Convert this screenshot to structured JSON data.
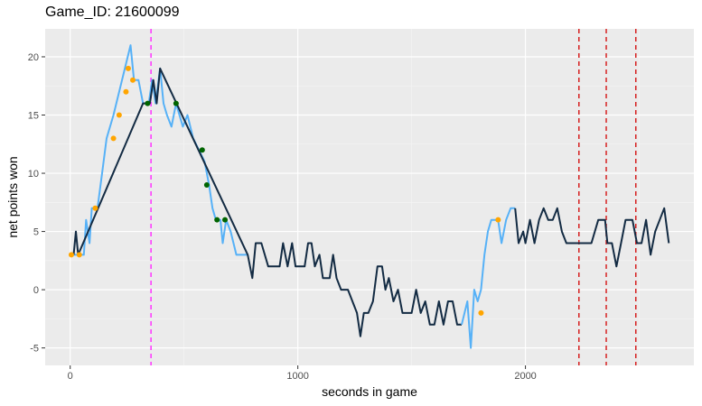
{
  "chart_data": {
    "type": "line",
    "title": "Game_ID: 21600099",
    "xlabel": "seconds in game",
    "ylabel": "net points won",
    "xlim": [
      -110,
      2740
    ],
    "ylim": [
      -6.5,
      22.4
    ],
    "x_ticks": [
      0,
      1000,
      2000
    ],
    "y_ticks": [
      -5,
      0,
      5,
      10,
      15,
      20
    ],
    "grid": true,
    "legend": "none",
    "colors": {
      "panel": "#ebebeb",
      "grid_major": "#ffffff",
      "grid_minor": "#f5f5f5",
      "series_light": "#56b1f7",
      "series_dark": "#132b43",
      "points_orange": "#ffa500",
      "points_green": "#006400",
      "vline_magenta": "#ff33ff",
      "vline_red": "#d62020"
    },
    "series": [
      {
        "color_key": "series_light",
        "points": [
          [
            0,
            3
          ],
          [
            30,
            3
          ],
          [
            60,
            3
          ],
          [
            70,
            6
          ],
          [
            85,
            4
          ],
          [
            95,
            7
          ],
          [
            120,
            7
          ],
          [
            140,
            10
          ],
          [
            160,
            13
          ],
          [
            190,
            15
          ],
          [
            215,
            17
          ],
          [
            240,
            19
          ],
          [
            265,
            21
          ],
          [
            280,
            18
          ],
          [
            300,
            18
          ],
          [
            320,
            16
          ],
          [
            345,
            16
          ],
          [
            360,
            18
          ],
          [
            375,
            16
          ],
          [
            395,
            19
          ],
          [
            410,
            16
          ],
          [
            425,
            15
          ],
          [
            445,
            14
          ],
          [
            465,
            16
          ],
          [
            480,
            15
          ],
          [
            495,
            14
          ],
          [
            515,
            15
          ],
          [
            540,
            13
          ],
          [
            565,
            12
          ],
          [
            590,
            11
          ],
          [
            610,
            9
          ],
          [
            625,
            7
          ],
          [
            640,
            6
          ],
          [
            660,
            6
          ],
          [
            670,
            4
          ],
          [
            685,
            6
          ],
          [
            705,
            5
          ],
          [
            730,
            3
          ],
          [
            780,
            3
          ]
        ]
      },
      {
        "color_key": "series_dark",
        "points": [
          [
            15,
            3
          ],
          [
            25,
            5
          ],
          [
            35,
            3
          ],
          [
            320,
            16
          ],
          [
            350,
            16
          ],
          [
            365,
            18
          ],
          [
            380,
            16
          ],
          [
            395,
            19
          ],
          [
            780,
            3
          ],
          [
            800,
            1
          ],
          [
            815,
            4
          ],
          [
            840,
            4
          ],
          [
            870,
            2
          ],
          [
            920,
            2
          ],
          [
            935,
            4
          ],
          [
            955,
            2
          ],
          [
            975,
            4
          ],
          [
            990,
            2
          ],
          [
            1030,
            2
          ],
          [
            1045,
            4
          ],
          [
            1060,
            4
          ],
          [
            1075,
            2
          ],
          [
            1095,
            3
          ],
          [
            1110,
            1
          ],
          [
            1140,
            1
          ],
          [
            1155,
            3
          ],
          [
            1170,
            1
          ],
          [
            1190,
            0
          ],
          [
            1220,
            0
          ],
          [
            1240,
            -1
          ],
          [
            1260,
            -2
          ],
          [
            1275,
            -4
          ],
          [
            1290,
            -2
          ],
          [
            1310,
            -2
          ],
          [
            1330,
            -1
          ],
          [
            1350,
            2
          ],
          [
            1370,
            2
          ],
          [
            1385,
            0
          ],
          [
            1400,
            1
          ],
          [
            1420,
            -1
          ],
          [
            1440,
            0
          ],
          [
            1460,
            -2
          ],
          [
            1500,
            -2
          ],
          [
            1520,
            0
          ],
          [
            1540,
            -2
          ],
          [
            1560,
            -1
          ],
          [
            1580,
            -3
          ],
          [
            1600,
            -3
          ],
          [
            1620,
            -1
          ],
          [
            1640,
            -3
          ],
          [
            1660,
            -1
          ],
          [
            1680,
            -1
          ],
          [
            1700,
            -3
          ],
          [
            1720,
            -3
          ]
        ]
      },
      {
        "color_key": "series_light",
        "points": [
          [
            1720,
            -3
          ],
          [
            1745,
            -1
          ],
          [
            1760,
            -5
          ],
          [
            1775,
            0
          ],
          [
            1790,
            -1
          ],
          [
            1805,
            0
          ],
          [
            1820,
            3
          ],
          [
            1835,
            5
          ],
          [
            1850,
            6
          ],
          [
            1880,
            6
          ],
          [
            1895,
            4
          ],
          [
            1915,
            6
          ],
          [
            1935,
            7
          ],
          [
            1955,
            7
          ]
        ]
      },
      {
        "color_key": "series_dark",
        "points": [
          [
            1955,
            7
          ],
          [
            1970,
            4
          ],
          [
            1990,
            5
          ],
          [
            2000,
            4
          ],
          [
            2020,
            6
          ],
          [
            2040,
            4
          ],
          [
            2060,
            6
          ],
          [
            2080,
            7
          ],
          [
            2100,
            6
          ],
          [
            2120,
            6
          ],
          [
            2140,
            7
          ],
          [
            2160,
            5
          ],
          [
            2180,
            4
          ],
          [
            2230,
            4
          ],
          [
            2260,
            4
          ],
          [
            2290,
            4
          ],
          [
            2320,
            6
          ],
          [
            2350,
            6
          ],
          [
            2360,
            4
          ],
          [
            2380,
            4
          ],
          [
            2400,
            2
          ],
          [
            2420,
            4
          ],
          [
            2440,
            6
          ],
          [
            2470,
            6
          ],
          [
            2490,
            4
          ],
          [
            2510,
            4
          ],
          [
            2530,
            6
          ],
          [
            2550,
            3
          ],
          [
            2570,
            5
          ],
          [
            2590,
            6
          ],
          [
            2610,
            7
          ],
          [
            2630,
            4
          ]
        ]
      }
    ],
    "points_orange": [
      [
        5,
        3
      ],
      [
        40,
        3
      ],
      [
        110,
        7
      ],
      [
        190,
        13
      ],
      [
        215,
        15
      ],
      [
        245,
        17
      ],
      [
        255,
        19
      ],
      [
        275,
        18
      ],
      [
        1880,
        6
      ],
      [
        1805,
        -2
      ]
    ],
    "points_green": [
      [
        340,
        16
      ],
      [
        465,
        16
      ],
      [
        580,
        12
      ],
      [
        600,
        9
      ],
      [
        645,
        6
      ],
      [
        680,
        6
      ]
    ],
    "vlines_magenta": [
      355
    ],
    "vlines_red": [
      2235,
      2355,
      2485
    ]
  }
}
